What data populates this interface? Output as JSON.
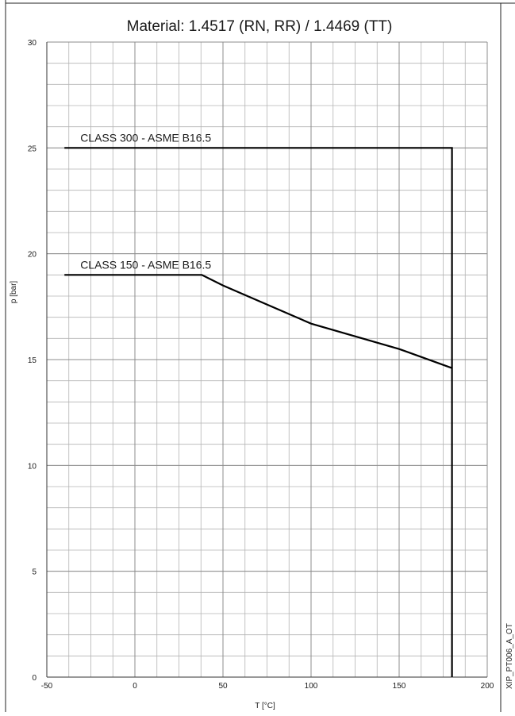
{
  "chart_data": {
    "type": "line",
    "title": "Material: 1.4517 (RN, RR) / 1.4469 (TT)",
    "xlabel": "T [°C]",
    "ylabel": "p [bar]",
    "xlim": [
      -50,
      200
    ],
    "ylim": [
      0,
      30
    ],
    "x_ticks": [
      -50,
      0,
      50,
      100,
      150,
      200
    ],
    "y_ticks": [
      0,
      5,
      10,
      15,
      20,
      25,
      30
    ],
    "x_minor_step": 12.5,
    "y_minor_step": 1,
    "grid": true,
    "series": [
      {
        "name": "CLASS 300 - ASME B16.5",
        "x": [
          -40,
          180,
          180
        ],
        "y": [
          25,
          25,
          0
        ]
      },
      {
        "name": "CLASS 150 - ASME B16.5",
        "x": [
          -40,
          38,
          50,
          100,
          150,
          180
        ],
        "y": [
          19,
          19,
          18.5,
          16.7,
          15.5,
          14.6
        ]
      }
    ],
    "watermark": "XIP_PT006_A_OT",
    "line_color": "#000000",
    "grid_color": "#b4b4b4"
  }
}
